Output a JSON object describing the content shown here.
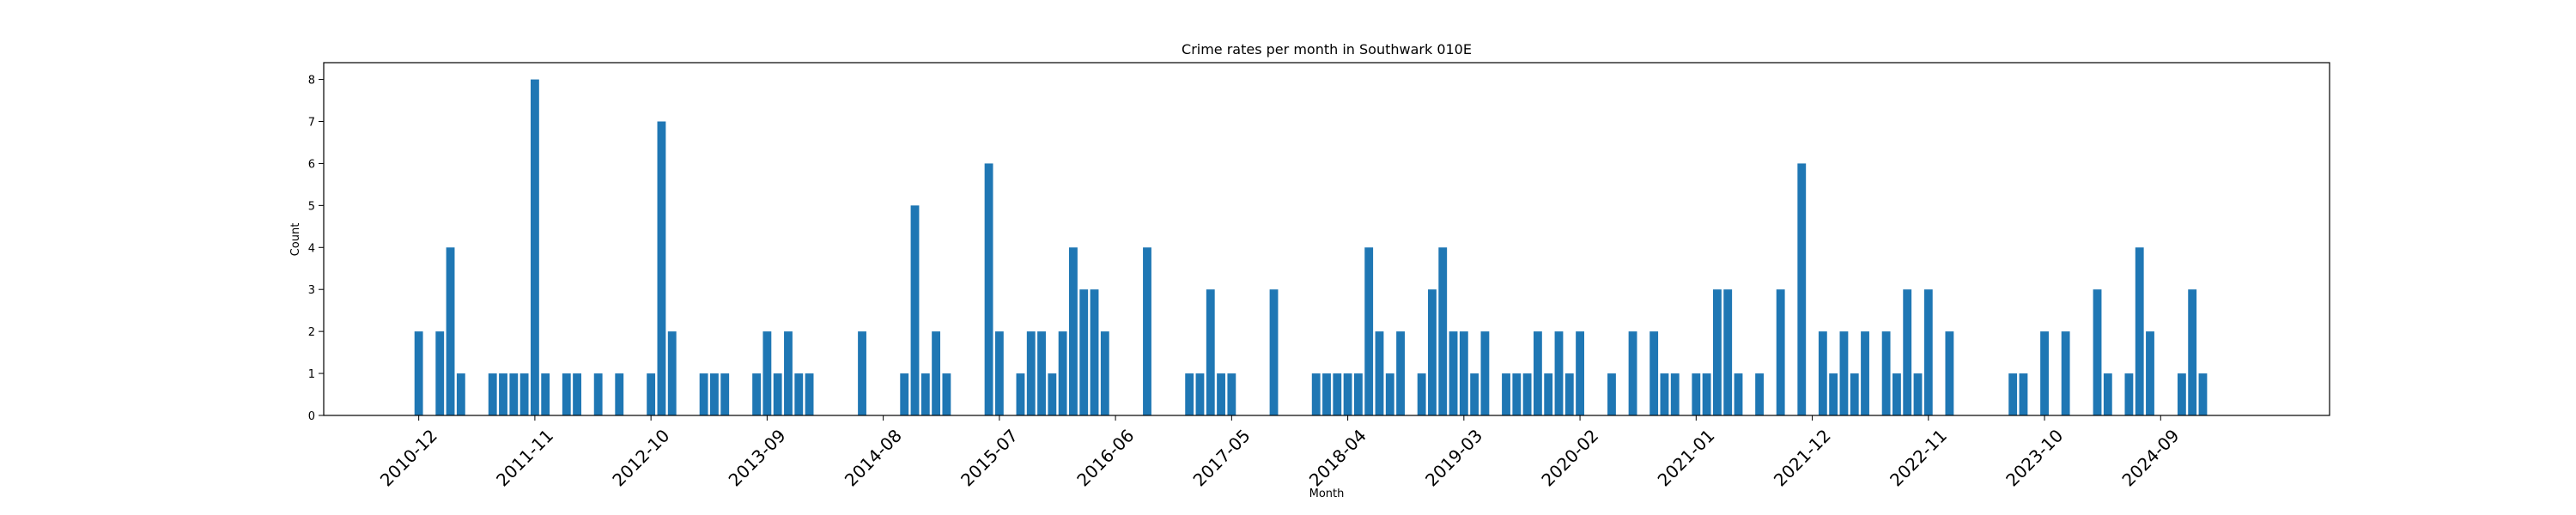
{
  "chart_data": {
    "type": "bar",
    "title": "Crime rates per month in Southwark 010E",
    "xlabel": "Month",
    "ylabel": "Count",
    "ylim": [
      0,
      8.4
    ],
    "yticks": [
      0,
      1,
      2,
      3,
      4,
      5,
      6,
      7,
      8
    ],
    "xtick_labels": [
      "2010-12",
      "2011-11",
      "2012-10",
      "2013-09",
      "2014-08",
      "2015-07",
      "2016-06",
      "2017-05",
      "2018-04",
      "2019-03",
      "2020-02",
      "2021-01",
      "2021-12",
      "2022-11",
      "2023-10",
      "2024-09"
    ],
    "grid": false,
    "color": "#1f77b4",
    "x": [
      "2010-12",
      "2011-02",
      "2011-03",
      "2011-04",
      "2011-07",
      "2011-08",
      "2011-09",
      "2011-10",
      "2011-11",
      "2011-12",
      "2012-02",
      "2012-03",
      "2012-05",
      "2012-07",
      "2012-10",
      "2012-11",
      "2012-12",
      "2013-03",
      "2013-04",
      "2013-05",
      "2013-08",
      "2013-09",
      "2013-10",
      "2013-11",
      "2013-12",
      "2014-01",
      "2014-06",
      "2014-10",
      "2014-11",
      "2014-12",
      "2015-01",
      "2015-02",
      "2015-06",
      "2015-07",
      "2015-09",
      "2015-10",
      "2015-11",
      "2015-12",
      "2016-01",
      "2016-02",
      "2016-03",
      "2016-04",
      "2016-05",
      "2016-09",
      "2017-01",
      "2017-02",
      "2017-03",
      "2017-04",
      "2017-05",
      "2017-09",
      "2018-01",
      "2018-02",
      "2018-03",
      "2018-04",
      "2018-05",
      "2018-06",
      "2018-07",
      "2018-08",
      "2018-09",
      "2018-11",
      "2018-12",
      "2019-01",
      "2019-02",
      "2019-03",
      "2019-04",
      "2019-05",
      "2019-07",
      "2019-08",
      "2019-09",
      "2019-10",
      "2019-11",
      "2019-12",
      "2020-01",
      "2020-02",
      "2020-05",
      "2020-07",
      "2020-09",
      "2020-10",
      "2020-11",
      "2021-01",
      "2021-02",
      "2021-03",
      "2021-04",
      "2021-05",
      "2021-07",
      "2021-09",
      "2021-11",
      "2022-01",
      "2022-02",
      "2022-03",
      "2022-04",
      "2022-05",
      "2022-07",
      "2022-08",
      "2022-09",
      "2022-10",
      "2022-11",
      "2023-01",
      "2023-07",
      "2023-08",
      "2023-10",
      "2023-12",
      "2024-03",
      "2024-04",
      "2024-06",
      "2024-07",
      "2024-08",
      "2024-11",
      "2024-12",
      "2025-01"
    ],
    "values": [
      2,
      2,
      4,
      1,
      1,
      1,
      1,
      1,
      8,
      1,
      1,
      1,
      1,
      1,
      1,
      7,
      2,
      1,
      1,
      1,
      1,
      2,
      1,
      2,
      1,
      1,
      2,
      1,
      5,
      1,
      2,
      1,
      6,
      2,
      1,
      2,
      2,
      1,
      2,
      4,
      3,
      3,
      2,
      4,
      1,
      1,
      3,
      1,
      1,
      3,
      1,
      1,
      1,
      1,
      1,
      4,
      2,
      1,
      2,
      1,
      3,
      4,
      2,
      2,
      1,
      2,
      1,
      1,
      1,
      2,
      1,
      2,
      1,
      2,
      1,
      2,
      2,
      1,
      1,
      1,
      1,
      3,
      3,
      1,
      1,
      3,
      6,
      2,
      1,
      2,
      1,
      2,
      2,
      1,
      3,
      1,
      3,
      2,
      1,
      1,
      2,
      2,
      3,
      1,
      1,
      4,
      2,
      1,
      3,
      1
    ]
  }
}
